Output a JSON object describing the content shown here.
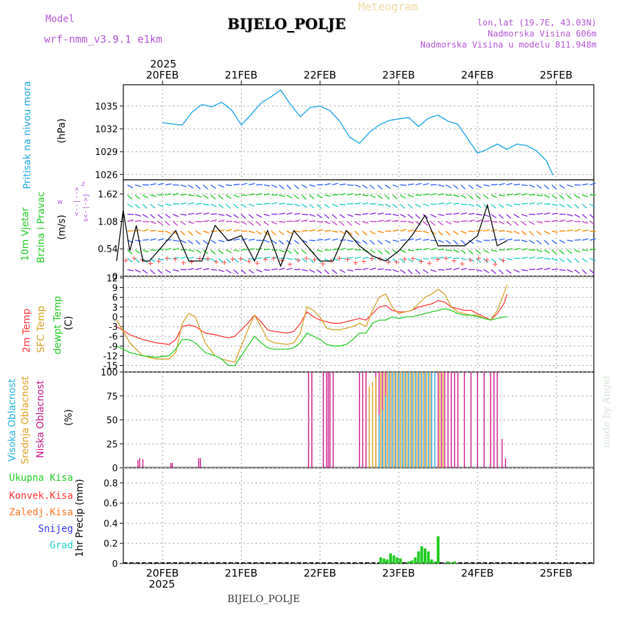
{
  "header": {
    "model_label": "Model",
    "model_name": "wrf-nmm_v3.9.1  e1km",
    "title": "BIJELO_POLJE",
    "subtitle": "Meteogram",
    "lonlat": "lon,lat (19.7E, 43.03N)",
    "elevation": "Nadmorska Visina 606m",
    "model_elevation": "Nadmorska Visina u modelu 811.948m",
    "footer_station": "BIJELO_POLJE",
    "watermark": "made by Angel",
    "year_top": "2025",
    "year_bottom": "2025"
  },
  "colors": {
    "pressure": "#1ba6e6",
    "wind_speed": "#000000",
    "temp": "#ff3333",
    "sfc_temp": "#d4a020",
    "dewpt": "#22cc22",
    "cloud_high": "#22b0e0",
    "cloud_mid": "#e0a020",
    "cloud_low": "#cc1188",
    "precip_total": "#22cc22",
    "precip_conv": "#ff3333",
    "precip_frz": "#ff7722",
    "precip_snow": "#3333ff",
    "precip_grad": "#22cccc",
    "label_model": "#b455d6"
  },
  "chart_data": [
    {
      "type": "line",
      "panel": "pressure",
      "ylabel_name": "Pritisak na nivou mora",
      "ylabel_unit": "(hPa)",
      "x_ticks": [
        "20FEB",
        "21FEB",
        "22FEB",
        "23FEB",
        "24FEB",
        "25FEB"
      ],
      "yticks": [
        1026,
        1029,
        1032,
        1035
      ],
      "ylim": [
        1025.3,
        1037.8
      ],
      "grid": true,
      "x_hours": [
        0,
        6,
        9,
        12,
        15,
        18,
        21,
        24,
        27,
        30,
        33,
        36,
        39,
        42,
        45,
        48,
        51,
        54,
        57,
        60,
        63,
        66,
        69,
        72,
        75,
        78,
        81,
        84,
        87,
        90,
        93,
        96,
        99,
        102,
        105,
        108,
        111,
        114,
        117,
        119
      ],
      "series": [
        {
          "values": [
            1032.8,
            1032.5,
            1034.2,
            1035.2,
            1034.9,
            1035.5,
            1034.5,
            1032.5,
            1033.9,
            1035.4,
            1036.2,
            1037.1,
            1035.2,
            1033.6,
            1034.8,
            1035.0,
            1034.4,
            1033.0,
            1030.9,
            1030.1,
            1031.5,
            1032.5,
            1033.1,
            1033.3,
            1033.5,
            1032.3,
            1033.4,
            1033.8,
            1033.0,
            1032.6,
            1030.7,
            1028.8,
            1029.3,
            1030.0,
            1029.3,
            1030.0,
            1029.8,
            1029.1,
            1027.8,
            1025.9
          ]
        }
      ]
    },
    {
      "type": "line",
      "panel": "wind",
      "ylabel_name": "10m Vjetar",
      "ylabel_name2": "Brzina i Pravac",
      "ylabel_unit": "(m/s)",
      "direction_legend": [
        "w",
        "<--|-->",
        "z",
        "s<-|->j"
      ],
      "yticks": [
        0,
        0.54,
        1.08,
        1.62
      ],
      "ylim": [
        0,
        1.9
      ],
      "grid": true,
      "x_hours": [
        0,
        2,
        4,
        6,
        8,
        10,
        14,
        18,
        22,
        26,
        30,
        34,
        38,
        42,
        46,
        50,
        54,
        58,
        62,
        66,
        70,
        74,
        78,
        82,
        86,
        90,
        94,
        98,
        102,
        106,
        110,
        113,
        116,
        119
      ],
      "series": [
        {
          "values": [
            0.3,
            1.3,
            0.5,
            1.0,
            0.3,
            0.3,
            0.6,
            0.9,
            0.3,
            0.3,
            1.0,
            0.7,
            0.8,
            0.3,
            0.9,
            0.2,
            0.9,
            0.6,
            0.3,
            0.3,
            0.9,
            0.6,
            0.4,
            0.3,
            0.5,
            0.8,
            1.2,
            0.6,
            0.6,
            0.6,
            0.8,
            1.4,
            0.6,
            0.7
          ]
        }
      ]
    },
    {
      "type": "line",
      "panel": "temperature",
      "ylabel_names": [
        "2m Temp",
        "SFC Temp",
        "dewpt Temp"
      ],
      "ylabel_unit": "(C)",
      "yticks": [
        -15,
        -12,
        -9,
        -6,
        -3,
        0,
        3,
        6,
        9,
        12
      ],
      "ylim": [
        -17,
        12.5
      ],
      "grid": true,
      "x_hours": [
        0,
        4,
        8,
        12,
        16,
        18,
        20,
        22,
        24,
        27,
        30,
        32,
        34,
        36,
        40,
        42,
        44,
        46,
        48,
        52,
        54,
        56,
        58,
        60,
        62,
        64,
        66,
        68,
        70,
        72,
        74,
        76,
        78,
        80,
        82,
        84,
        86,
        88,
        90,
        92,
        94,
        96,
        98,
        100,
        102,
        104,
        106,
        108,
        110,
        112,
        114,
        116,
        118,
        119
      ],
      "series": [
        {
          "name": "2m Temp",
          "values": [
            -3,
            -5.5,
            -7,
            -8,
            -8.5,
            -7,
            -3,
            -2.5,
            -3,
            -5,
            -5.5,
            -6,
            -6.5,
            -6,
            -2,
            0.5,
            -1.5,
            -4,
            -4.5,
            -5,
            -4.5,
            -2,
            1.5,
            0,
            -1,
            -1.5,
            -2,
            -2,
            -1.5,
            -1,
            -0.5,
            -1,
            1,
            3,
            3.5,
            2,
            1.5,
            1.5,
            2,
            3,
            3.5,
            4,
            5,
            4.5,
            3,
            2.5,
            2,
            2,
            1,
            0,
            -1,
            1,
            4,
            7
          ]
        },
        {
          "name": "SFC Temp",
          "values": [
            -1,
            -8,
            -12,
            -13,
            -13,
            -11,
            -2,
            1,
            0,
            -8,
            -12,
            -13,
            -13.5,
            -14,
            -4,
            0.5,
            -3,
            -7,
            -8,
            -8.5,
            -8,
            -5,
            3,
            2,
            0,
            -3.5,
            -4,
            -4,
            -3.5,
            -3,
            -2,
            -3,
            2,
            6,
            7,
            3,
            1,
            1.5,
            2,
            4,
            6,
            7,
            8.5,
            7,
            3,
            1.5,
            1,
            0.5,
            0.5,
            -0.5,
            -1,
            2,
            7,
            10
          ]
        },
        {
          "name": "dewpt Temp",
          "values": [
            -9,
            -11,
            -12,
            -12.5,
            -12,
            -10,
            -7,
            -7,
            -8,
            -11,
            -12,
            -13,
            -15,
            -15,
            -9,
            -6,
            -8,
            -9.5,
            -10,
            -10,
            -9.5,
            -8,
            -5,
            -6,
            -7,
            -8.5,
            -9,
            -9,
            -8.5,
            -7,
            -5,
            -5,
            -2,
            -1,
            -1,
            0,
            -0.5,
            0,
            0,
            0.5,
            1,
            1.5,
            2,
            2.5,
            2,
            1,
            0.5,
            0.5,
            0,
            -0.5,
            -1,
            -0.5,
            0,
            0
          ]
        }
      ]
    },
    {
      "type": "bar",
      "panel": "clouds",
      "ylabel_names": [
        "Visoka Oblacnost",
        "Srednja Oblacnost",
        "Niska Oblacnost"
      ],
      "ylabel_unit": "(%)",
      "yticks": [
        0,
        25,
        50,
        75,
        100
      ],
      "ylim": [
        0,
        100
      ],
      "grid": true,
      "series": [
        {
          "name": "Niska Oblacnost",
          "x_hours": [
            6.5,
            7,
            8,
            16.5,
            17,
            25,
            25.5,
            58.5,
            59.5,
            63,
            64,
            64.5,
            65,
            66,
            74,
            75,
            76,
            79,
            80,
            81,
            82,
            83,
            84,
            85,
            86,
            87,
            88,
            89,
            90,
            91,
            92,
            93,
            94,
            95,
            96,
            97,
            98,
            99,
            100,
            101,
            102,
            103,
            104,
            106,
            108,
            110,
            112,
            114,
            115,
            116,
            117.5,
            118.5
          ],
          "values": [
            8,
            10,
            9,
            5,
            5,
            10,
            10,
            100,
            100,
            100,
            100,
            100,
            100,
            100,
            100,
            100,
            100,
            100,
            100,
            100,
            100,
            100,
            100,
            100,
            100,
            100,
            100,
            100,
            100,
            100,
            100,
            100,
            100,
            100,
            100,
            100,
            100,
            100,
            100,
            100,
            100,
            100,
            100,
            100,
            100,
            100,
            100,
            100,
            100,
            100,
            30,
            10
          ]
        },
        {
          "name": "Srednja Oblacnost",
          "x_hours": [
            77,
            78,
            79,
            80.5,
            81.5,
            82.5,
            83.5,
            84.5,
            85.5,
            86.5,
            87.5,
            88.5,
            89.5,
            90.5,
            91.5,
            92.5,
            93.5,
            94.5,
            95.5,
            97,
            98.5,
            99.5
          ],
          "values": [
            85,
            90,
            95,
            100,
            100,
            100,
            100,
            100,
            100,
            100,
            100,
            100,
            100,
            100,
            100,
            100,
            100,
            100,
            100,
            100,
            100,
            100
          ]
        },
        {
          "name": "Visoka Oblacnost",
          "x_hours": [
            80,
            81,
            82,
            83,
            84,
            85,
            86,
            87,
            88,
            89,
            90,
            91,
            92,
            93,
            94,
            95,
            96,
            97
          ],
          "values": [
            55,
            60,
            75,
            100,
            100,
            100,
            100,
            100,
            100,
            100,
            100,
            100,
            100,
            100,
            100,
            100,
            100,
            100
          ]
        }
      ]
    },
    {
      "type": "bar",
      "panel": "precipitation",
      "ylabel_names": [
        "Ukupna Kisa",
        "Konvek.Kisa",
        "Zaledj.Kisa",
        "Snijeg",
        "Grad"
      ],
      "ylabel_unit": "1hr Precip (mm)",
      "yticks": [
        0,
        0.2,
        0.4,
        0.6,
        0.8
      ],
      "ylim": [
        0,
        0.95
      ],
      "grid": true,
      "series": [
        {
          "name": "Ukupna Kisa",
          "x_hours": [
            80.5,
            81.5,
            82.5,
            83.5,
            84.5,
            85.5,
            86.5,
            89,
            90,
            91,
            92,
            93,
            94,
            95,
            96,
            97,
            98,
            101,
            102,
            103
          ],
          "values": [
            0.06,
            0.05,
            0.04,
            0.1,
            0.08,
            0.06,
            0.05,
            0.02,
            0.03,
            0.06,
            0.12,
            0.17,
            0.15,
            0.12,
            0.04,
            0.02,
            0.27,
            0.02,
            0.01,
            0.02
          ]
        }
      ]
    }
  ]
}
